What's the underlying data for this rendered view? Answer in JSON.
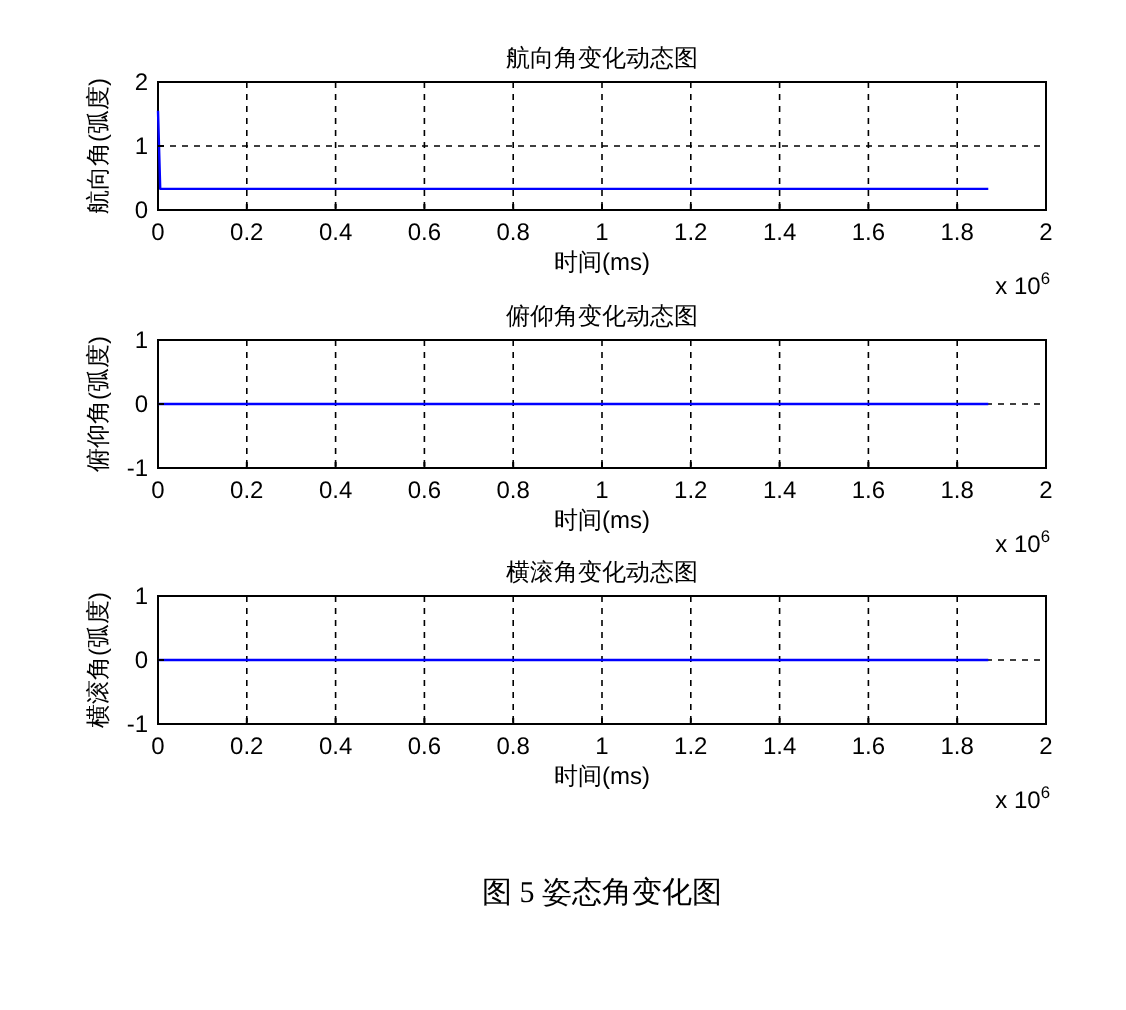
{
  "chart_data": [
    {
      "type": "line",
      "title": "航向角变化动态图",
      "xlabel": "时间(ms)",
      "ylabel": "航向角(弧度)",
      "x": [
        0,
        0.005,
        1.87
      ],
      "series": [
        {
          "color": "#0000ff",
          "values": [
            1.55,
            0.33,
            0.33
          ]
        }
      ],
      "xlim": [
        0,
        2
      ],
      "xticks": [
        0,
        0.2,
        0.4,
        0.6,
        0.8,
        1,
        1.2,
        1.4,
        1.6,
        1.8,
        2
      ],
      "ylim": [
        0,
        2
      ],
      "yticks": [
        0,
        1,
        2
      ],
      "grid": true,
      "annotations": [
        "x 10$^{6}$"
      ]
    },
    {
      "type": "line",
      "title": "俯仰角变化动态图",
      "xlabel": "时间(ms)",
      "ylabel": "俯仰角(弧度)",
      "x": [
        0,
        1.87
      ],
      "series": [
        {
          "color": "#0000ff",
          "values": [
            0,
            0
          ]
        }
      ],
      "xlim": [
        0,
        2
      ],
      "xticks": [
        0,
        0.2,
        0.4,
        0.6,
        0.8,
        1,
        1.2,
        1.4,
        1.6,
        1.8,
        2
      ],
      "ylim": [
        -1,
        1
      ],
      "yticks": [
        -1,
        0,
        1
      ],
      "grid": true,
      "annotations": [
        "x 10$^{6}$"
      ]
    },
    {
      "type": "line",
      "title": "横滚角变化动态图",
      "xlabel": "时间(ms)",
      "ylabel": "横滚角(弧度)",
      "x": [
        0,
        1.87
      ],
      "series": [
        {
          "color": "#0000ff",
          "values": [
            0,
            0
          ]
        }
      ],
      "xlim": [
        0,
        2
      ],
      "xticks": [
        0,
        0.2,
        0.4,
        0.6,
        0.8,
        1,
        1.2,
        1.4,
        1.6,
        1.8,
        2
      ],
      "ylim": [
        -1,
        1
      ],
      "yticks": [
        -1,
        0,
        1
      ],
      "grid": true,
      "annotations": [
        "x 10$^{6}$",
        "图 5  姿态角变化图"
      ]
    }
  ]
}
